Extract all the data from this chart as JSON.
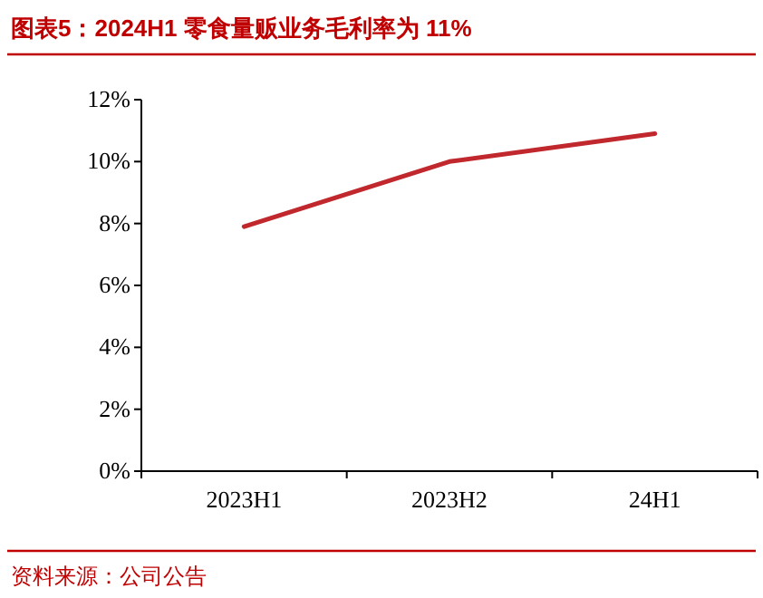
{
  "chart_data": {
    "type": "line",
    "title": "图表5：2024H1 零食量贩业务毛利率为 11%",
    "categories": [
      "2023H1",
      "2023H2",
      "24H1"
    ],
    "series": [
      {
        "color": "#c0282d",
        "values": [
          7.9,
          10.0,
          10.9
        ]
      }
    ],
    "ylim": [
      0,
      12
    ],
    "yticks": [
      {
        "value": 0,
        "label": "0%"
      },
      {
        "value": 2,
        "label": "2%"
      },
      {
        "value": 4,
        "label": "4%"
      },
      {
        "value": 6,
        "label": "6%"
      },
      {
        "value": 8,
        "label": "8%"
      },
      {
        "value": 10,
        "label": "10%"
      },
      {
        "value": 12,
        "label": "12%"
      }
    ],
    "annotations": [
      "资料来源：公司公告"
    ]
  }
}
